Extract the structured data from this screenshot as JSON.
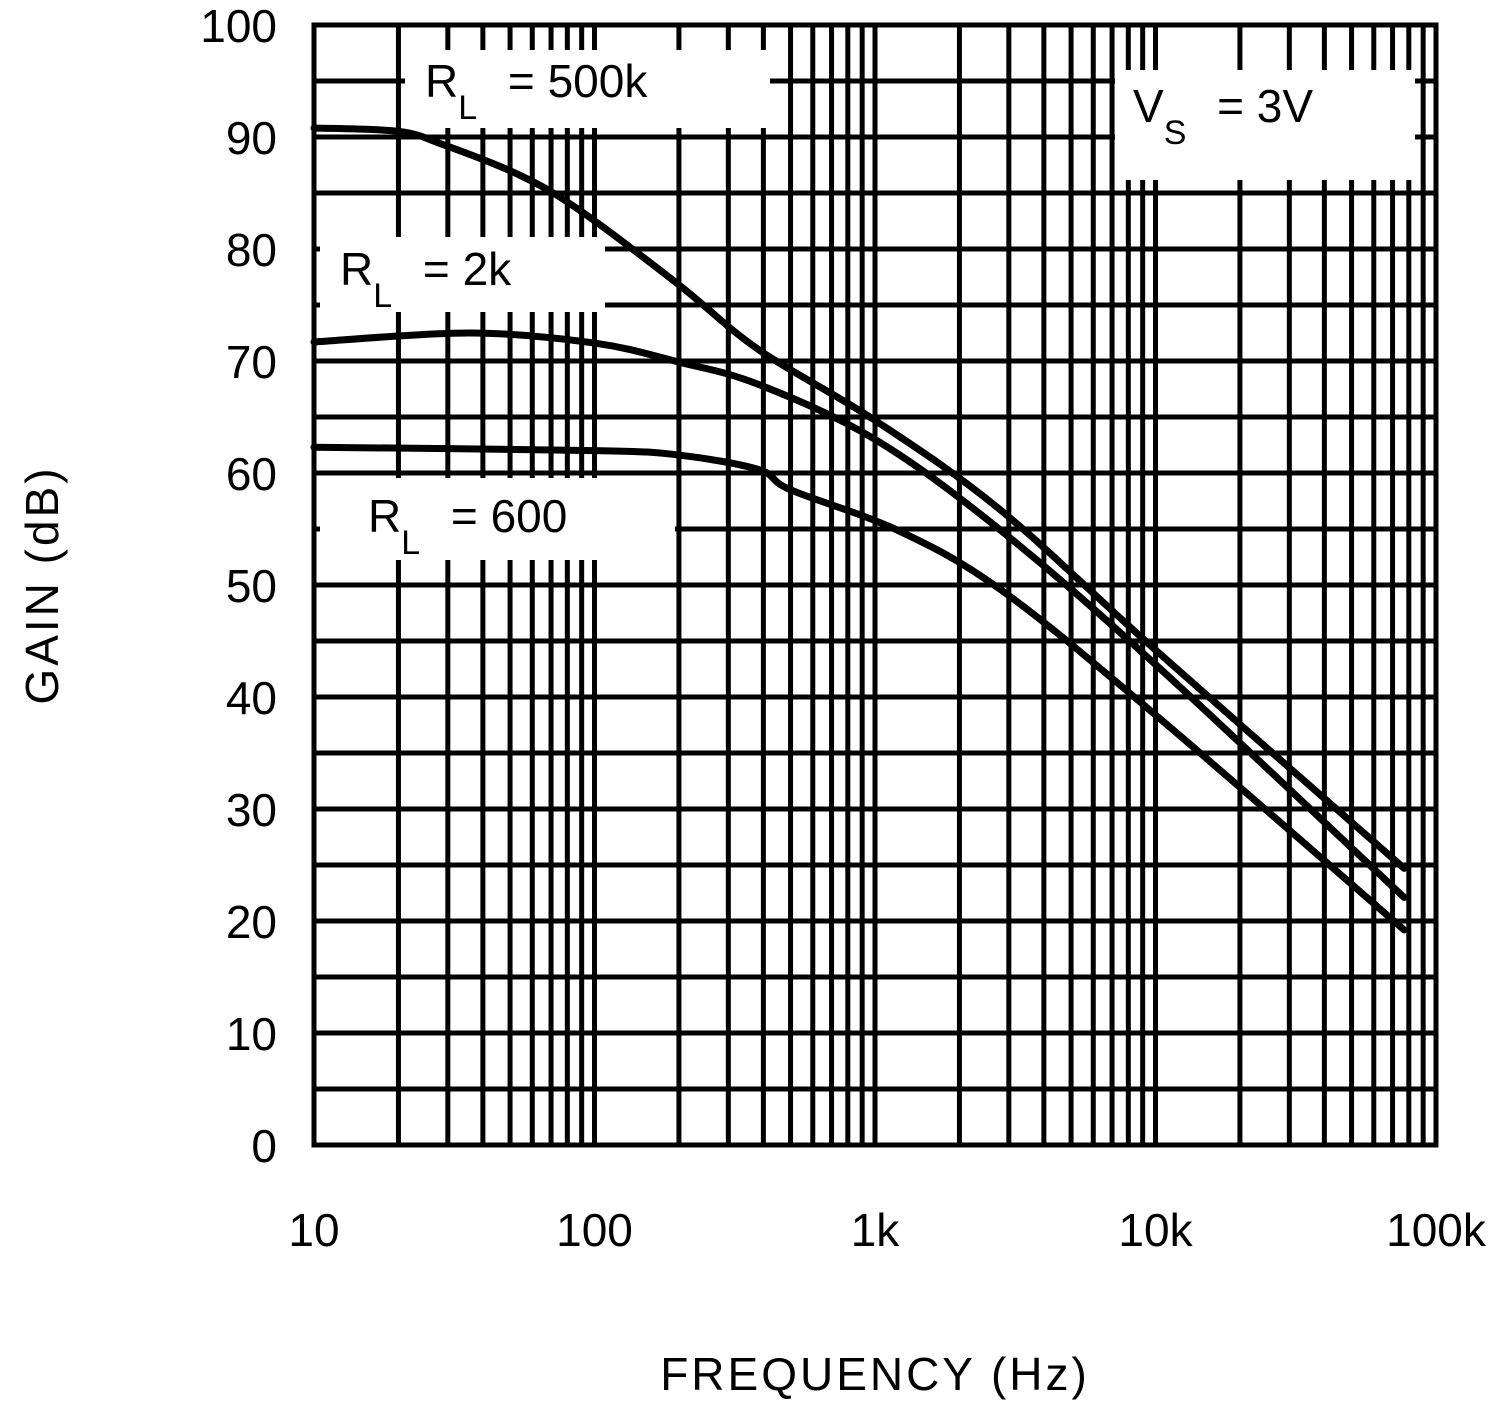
{
  "chart_data": {
    "type": "line",
    "title": "",
    "xlabel": "FREQUENCY (Hz)",
    "ylabel": "GAIN (dB)",
    "xscale": "log",
    "xlim": [
      10,
      100000
    ],
    "ylim": [
      0,
      100
    ],
    "grid": true,
    "x_ticks": [
      10,
      100,
      1000,
      10000,
      100000
    ],
    "x_tick_labels": [
      "10",
      "100",
      "1k",
      "10k",
      "100k"
    ],
    "y_ticks": [
      0,
      10,
      20,
      30,
      40,
      50,
      60,
      70,
      80,
      90,
      100
    ],
    "y_tick_labels": [
      "0",
      "10",
      "20",
      "30",
      "40",
      "50",
      "60",
      "70",
      "80",
      "90",
      "100"
    ],
    "annotations": [
      {
        "id": "rl500k",
        "main": "R",
        "sub": "L",
        "rest": "=  500k"
      },
      {
        "id": "rl2k",
        "main": "R",
        "sub": "L",
        "rest": "=  2k"
      },
      {
        "id": "rl600",
        "main": "R",
        "sub": "L",
        "rest": "=  600"
      },
      {
        "id": "vs",
        "main": "V",
        "sub": "S",
        "rest": "=  3V"
      }
    ],
    "series": [
      {
        "name": "RL = 500k",
        "x": [
          10,
          20,
          29,
          54,
          88,
          200,
          385,
          1000,
          2800,
          10000,
          77000
        ],
        "y": [
          90.8,
          90.5,
          89.3,
          86.6,
          83.5,
          76.8,
          71,
          64.7,
          56.7,
          44.2,
          24.7
        ]
      },
      {
        "name": "RL = 2k",
        "x": [
          10,
          36,
          100,
          200,
          385,
          1000,
          2800,
          10000,
          77000
        ],
        "y": [
          71.7,
          72.5,
          71.6,
          69.9,
          67.9,
          63,
          54.9,
          42.9,
          22.1
        ]
      },
      {
        "name": "RL = 600",
        "x": [
          10,
          100,
          200,
          385,
          500,
          1200,
          2800,
          10000,
          77000
        ],
        "y": [
          62.3,
          62,
          61.6,
          60.3,
          58.5,
          54.9,
          49.6,
          38.4,
          19.2
        ]
      }
    ]
  }
}
